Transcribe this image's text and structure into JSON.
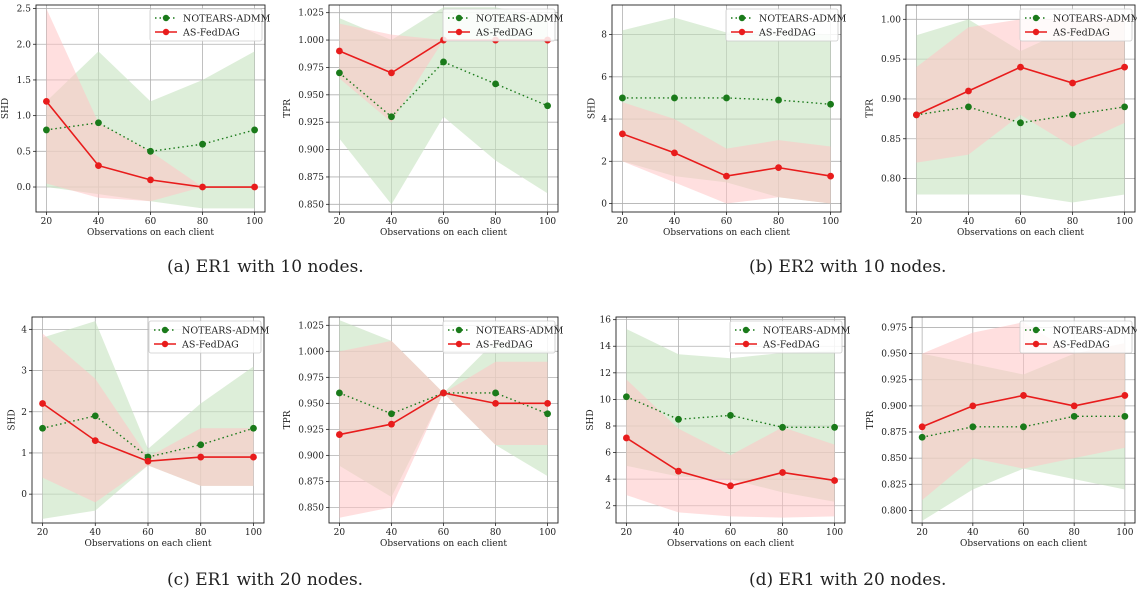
{
  "captions": [
    "(a) ER1 with 10 nodes.",
    "(b) ER2 with 10 nodes.",
    "(c) ER1 with 20 nodes.",
    "(d) ER1 with 20 nodes."
  ],
  "colors": {
    "notears": "#1a7a1a",
    "asfed": "#e81c1c",
    "notears_band": "#c6e2c0",
    "asfed_band": "#ffc4c4",
    "grid": "#b0b0b0"
  },
  "chart_data": [
    {
      "type": "line",
      "xlabel": "Observations on each client",
      "ylabel": "SHD",
      "x": [
        20,
        40,
        60,
        80,
        100
      ],
      "ylim": [
        -0.35,
        2.55
      ],
      "yticks": [
        "0.0",
        "0.5",
        "1.0",
        "1.5",
        "2.0",
        "2.5"
      ],
      "legend_position": "upper right",
      "series": [
        {
          "name": "NOTEARS-ADMM",
          "values": [
            0.8,
            0.9,
            0.5,
            0.6,
            0.8
          ],
          "band_low": [
            0.0,
            -0.1,
            -0.2,
            -0.3,
            -0.3
          ],
          "band_high": [
            1.2,
            1.9,
            1.2,
            1.5,
            1.9
          ]
        },
        {
          "name": "AS-FedDAG",
          "values": [
            1.2,
            0.3,
            0.1,
            0.0,
            0.0
          ],
          "band_low": [
            0.05,
            -0.15,
            -0.2,
            0.0,
            0.0
          ],
          "band_high": [
            2.5,
            0.9,
            0.5,
            0.0,
            0.0
          ]
        }
      ]
    },
    {
      "type": "line",
      "xlabel": "Observations on each client",
      "ylabel": "TPR",
      "x": [
        20,
        40,
        60,
        80,
        100
      ],
      "ylim": [
        0.843,
        1.032
      ],
      "yticks": [
        "0.850",
        "0.875",
        "0.900",
        "0.925",
        "0.950",
        "0.975",
        "1.000",
        "1.025"
      ],
      "legend_position": "upper right",
      "series": [
        {
          "name": "NOTEARS-ADMM",
          "values": [
            0.97,
            0.93,
            0.98,
            0.96,
            0.94
          ],
          "band_low": [
            0.91,
            0.85,
            0.93,
            0.89,
            0.86
          ],
          "band_high": [
            1.02,
            1.0,
            1.03,
            1.03,
            1.02
          ]
        },
        {
          "name": "AS-FedDAG",
          "values": [
            0.99,
            0.97,
            1.0,
            1.0,
            1.0
          ],
          "band_low": [
            0.965,
            0.925,
            1.0,
            1.0,
            1.0
          ],
          "band_high": [
            1.015,
            1.005,
            1.0,
            1.0,
            1.0
          ]
        }
      ]
    },
    {
      "type": "line",
      "xlabel": "Observations on each client",
      "ylabel": "SHD",
      "x": [
        20,
        40,
        60,
        80,
        100
      ],
      "ylim": [
        -0.4,
        9.4
      ],
      "yticks": [
        "0",
        "2",
        "4",
        "6",
        "8"
      ],
      "legend_position": "upper right",
      "series": [
        {
          "name": "NOTEARS-ADMM",
          "values": [
            5.0,
            5.0,
            5.0,
            4.9,
            4.7
          ],
          "band_low": [
            2.0,
            1.3,
            1.0,
            0.3,
            0.0
          ],
          "band_high": [
            8.2,
            8.8,
            8.1,
            8.2,
            8.0
          ]
        },
        {
          "name": "AS-FedDAG",
          "values": [
            3.3,
            2.4,
            1.3,
            1.7,
            1.3
          ],
          "band_low": [
            2.0,
            1.0,
            0.0,
            0.3,
            0.0
          ],
          "band_high": [
            4.8,
            4.0,
            2.6,
            3.0,
            2.7
          ]
        }
      ]
    },
    {
      "type": "line",
      "xlabel": "Observations on each client",
      "ylabel": "TPR",
      "x": [
        20,
        40,
        60,
        80,
        100
      ],
      "ylim": [
        0.758,
        1.018
      ],
      "yticks": [
        "0.80",
        "0.85",
        "0.90",
        "0.95",
        "1.00"
      ],
      "legend_position": "upper right",
      "series": [
        {
          "name": "NOTEARS-ADMM",
          "values": [
            0.88,
            0.89,
            0.87,
            0.88,
            0.89
          ],
          "band_low": [
            0.78,
            0.78,
            0.78,
            0.77,
            0.78
          ],
          "band_high": [
            0.98,
            1.0,
            0.96,
            0.99,
            1.0
          ]
        },
        {
          "name": "AS-FedDAG",
          "values": [
            0.88,
            0.91,
            0.94,
            0.92,
            0.94
          ],
          "band_low": [
            0.82,
            0.83,
            0.88,
            0.84,
            0.87
          ],
          "band_high": [
            0.94,
            0.99,
            1.0,
            1.0,
            1.0
          ]
        }
      ]
    },
    {
      "type": "line",
      "xlabel": "Observations on each client",
      "ylabel": "SHD",
      "x": [
        20,
        40,
        60,
        80,
        100
      ],
      "ylim": [
        -0.7,
        4.3
      ],
      "yticks": [
        "0",
        "1",
        "2",
        "3",
        "4"
      ],
      "legend_position": "upper right",
      "series": [
        {
          "name": "NOTEARS-ADMM",
          "values": [
            1.6,
            1.9,
            0.9,
            1.2,
            1.6
          ],
          "band_low": [
            -0.6,
            -0.4,
            0.7,
            0.2,
            0.2
          ],
          "band_high": [
            3.8,
            4.2,
            1.1,
            2.2,
            3.1
          ]
        },
        {
          "name": "AS-FedDAG",
          "values": [
            2.2,
            1.3,
            0.8,
            0.9,
            0.9
          ],
          "band_low": [
            0.4,
            -0.2,
            0.7,
            0.2,
            0.2
          ],
          "band_high": [
            3.9,
            2.8,
            0.9,
            1.6,
            1.6
          ]
        }
      ]
    },
    {
      "type": "line",
      "xlabel": "Observations on each client",
      "ylabel": "TPR",
      "x": [
        20,
        40,
        60,
        80,
        100
      ],
      "ylim": [
        0.835,
        1.033
      ],
      "yticks": [
        "0.850",
        "0.875",
        "0.900",
        "0.925",
        "0.950",
        "0.975",
        "1.000",
        "1.025"
      ],
      "legend_position": "upper right",
      "series": [
        {
          "name": "NOTEARS-ADMM",
          "values": [
            0.96,
            0.94,
            0.96,
            0.96,
            0.94
          ],
          "band_low": [
            0.89,
            0.86,
            0.96,
            0.91,
            0.88
          ],
          "band_high": [
            1.03,
            1.01,
            0.96,
            1.01,
            1.0
          ]
        },
        {
          "name": "AS-FedDAG",
          "values": [
            0.92,
            0.93,
            0.96,
            0.95,
            0.95
          ],
          "band_low": [
            0.84,
            0.85,
            0.96,
            0.91,
            0.91
          ],
          "band_high": [
            1.0,
            1.01,
            0.96,
            0.99,
            0.99
          ]
        }
      ]
    },
    {
      "type": "line",
      "xlabel": "Observations on each client",
      "ylabel": "SHD",
      "x": [
        20,
        40,
        60,
        80,
        100
      ],
      "ylim": [
        0.7,
        16.2
      ],
      "yticks": [
        "2",
        "4",
        "6",
        "8",
        "10",
        "12",
        "14",
        "16"
      ],
      "legend_position": "upper right",
      "series": [
        {
          "name": "NOTEARS-ADMM",
          "values": [
            10.2,
            8.5,
            8.8,
            7.9,
            7.9
          ],
          "band_low": [
            5.0,
            4.2,
            4.0,
            3.0,
            2.3
          ],
          "band_high": [
            15.3,
            13.4,
            13.1,
            13.5,
            13.7
          ]
        },
        {
          "name": "AS-FedDAG",
          "values": [
            7.1,
            4.6,
            3.5,
            4.5,
            3.9
          ],
          "band_low": [
            2.8,
            1.5,
            1.2,
            1.1,
            1.2
          ],
          "band_high": [
            11.5,
            7.8,
            5.8,
            7.9,
            6.6
          ]
        }
      ]
    },
    {
      "type": "line",
      "xlabel": "Observations on each client",
      "ylabel": "TPR",
      "x": [
        20,
        40,
        60,
        80,
        100
      ],
      "ylim": [
        0.788,
        0.985
      ],
      "yticks": [
        "0.800",
        "0.825",
        "0.850",
        "0.875",
        "0.900",
        "0.925",
        "0.950",
        "0.975"
      ],
      "legend_position": "upper right",
      "series": [
        {
          "name": "NOTEARS-ADMM",
          "values": [
            0.87,
            0.88,
            0.88,
            0.89,
            0.89
          ],
          "band_low": [
            0.79,
            0.82,
            0.84,
            0.83,
            0.82
          ],
          "band_high": [
            0.95,
            0.94,
            0.93,
            0.95,
            0.96
          ]
        },
        {
          "name": "AS-FedDAG",
          "values": [
            0.88,
            0.9,
            0.91,
            0.9,
            0.91
          ],
          "band_low": [
            0.81,
            0.85,
            0.84,
            0.85,
            0.86
          ],
          "band_high": [
            0.95,
            0.97,
            0.98,
            0.95,
            0.96
          ]
        }
      ]
    }
  ]
}
